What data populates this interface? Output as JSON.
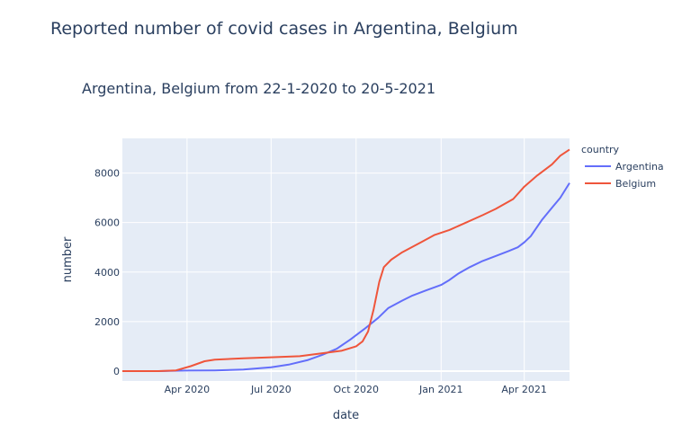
{
  "chart_data": {
    "type": "line",
    "title": "Reported number of covid cases in Argentina, Belgium",
    "subtitle": "Argentina, Belgium from 22-1-2020 to 20-5-2021",
    "xlabel": "date",
    "ylabel": "number",
    "x_tick_labels": [
      "Apr 2020",
      "Jul 2020",
      "Oct 2020",
      "Jan 2021",
      "Apr 2021"
    ],
    "x_ticks": [
      "2020-04-01",
      "2020-07-01",
      "2020-10-01",
      "2021-01-01",
      "2021-04-01"
    ],
    "y_ticks": [
      0,
      2000,
      4000,
      6000,
      8000
    ],
    "y_tick_labels": [
      "0",
      "2000",
      "4000",
      "6000",
      "8000"
    ],
    "xlim": [
      "2020-01-22",
      "2021-05-20"
    ],
    "ylim": [
      -400,
      9400
    ],
    "grid": true,
    "legend_title": "country",
    "legend_position": "right",
    "series": [
      {
        "name": "Argentina",
        "color": "#636efa",
        "points": [
          [
            "2020-01-22",
            0
          ],
          [
            "2020-03-01",
            0
          ],
          [
            "2020-04-01",
            20
          ],
          [
            "2020-05-01",
            30
          ],
          [
            "2020-06-01",
            60
          ],
          [
            "2020-07-01",
            150
          ],
          [
            "2020-07-20",
            260
          ],
          [
            "2020-08-10",
            450
          ],
          [
            "2020-08-25",
            650
          ],
          [
            "2020-09-10",
            900
          ],
          [
            "2020-09-25",
            1280
          ],
          [
            "2020-10-10",
            1700
          ],
          [
            "2020-10-25",
            2150
          ],
          [
            "2020-11-05",
            2550
          ],
          [
            "2020-11-20",
            2850
          ],
          [
            "2020-12-01",
            3050
          ],
          [
            "2020-12-15",
            3250
          ],
          [
            "2021-01-01",
            3480
          ],
          [
            "2021-01-10",
            3680
          ],
          [
            "2021-01-20",
            3950
          ],
          [
            "2021-02-01",
            4200
          ],
          [
            "2021-02-15",
            4450
          ],
          [
            "2021-03-01",
            4650
          ],
          [
            "2021-03-15",
            4850
          ],
          [
            "2021-03-25",
            5000
          ],
          [
            "2021-04-01",
            5200
          ],
          [
            "2021-04-08",
            5450
          ],
          [
            "2021-04-20",
            6100
          ],
          [
            "2021-05-01",
            6600
          ],
          [
            "2021-05-10",
            7000
          ],
          [
            "2021-05-20",
            7600
          ]
        ]
      },
      {
        "name": "Belgium",
        "color": "#ef553b",
        "points": [
          [
            "2020-01-22",
            0
          ],
          [
            "2020-03-01",
            0
          ],
          [
            "2020-03-20",
            30
          ],
          [
            "2020-04-05",
            200
          ],
          [
            "2020-04-20",
            400
          ],
          [
            "2020-05-01",
            460
          ],
          [
            "2020-06-01",
            520
          ],
          [
            "2020-07-01",
            560
          ],
          [
            "2020-08-01",
            600
          ],
          [
            "2020-09-01",
            750
          ],
          [
            "2020-09-15",
            820
          ],
          [
            "2020-10-01",
            1000
          ],
          [
            "2020-10-08",
            1200
          ],
          [
            "2020-10-14",
            1600
          ],
          [
            "2020-10-20",
            2500
          ],
          [
            "2020-10-26",
            3600
          ],
          [
            "2020-10-31",
            4200
          ],
          [
            "2020-11-08",
            4500
          ],
          [
            "2020-11-20",
            4800
          ],
          [
            "2020-12-10",
            5200
          ],
          [
            "2020-12-25",
            5500
          ],
          [
            "2021-01-10",
            5700
          ],
          [
            "2021-01-25",
            5950
          ],
          [
            "2021-02-15",
            6300
          ],
          [
            "2021-03-01",
            6550
          ],
          [
            "2021-03-20",
            6950
          ],
          [
            "2021-04-01",
            7450
          ],
          [
            "2021-04-15",
            7900
          ],
          [
            "2021-05-01",
            8350
          ],
          [
            "2021-05-10",
            8700
          ],
          [
            "2021-05-20",
            8950
          ]
        ]
      }
    ]
  }
}
